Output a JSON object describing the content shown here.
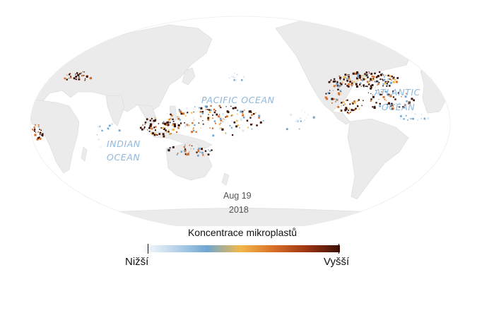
{
  "map": {
    "projection": "Pacific-centered elliptical world map",
    "ocean_labels": {
      "pacific": "PACIFIC OCEAN",
      "atlantic_line1": "ATLANTIC",
      "atlantic_line2": "OCEAN",
      "indian_line1": "INDIAN",
      "indian_line2": "OCEAN"
    },
    "date": {
      "day": "Aug 19",
      "year": "2018"
    },
    "colors": {
      "land": "#ececec",
      "ocean": "#ffffff",
      "low": "#dceaf5",
      "mid_blue": "#6fa6d2",
      "mid_yellow": "#f2b84a",
      "mid_orange": "#d8702a",
      "high": "#3b1005"
    }
  },
  "legend": {
    "title": "Koncentrace mikroplastů",
    "low_label": "Nižší",
    "high_label": "Vyšší",
    "gradient_stops": [
      "#ffffff",
      "#bcd6ec",
      "#6fa6d2",
      "#f2b84a",
      "#d8702a",
      "#9c3413",
      "#3b1005"
    ]
  }
}
